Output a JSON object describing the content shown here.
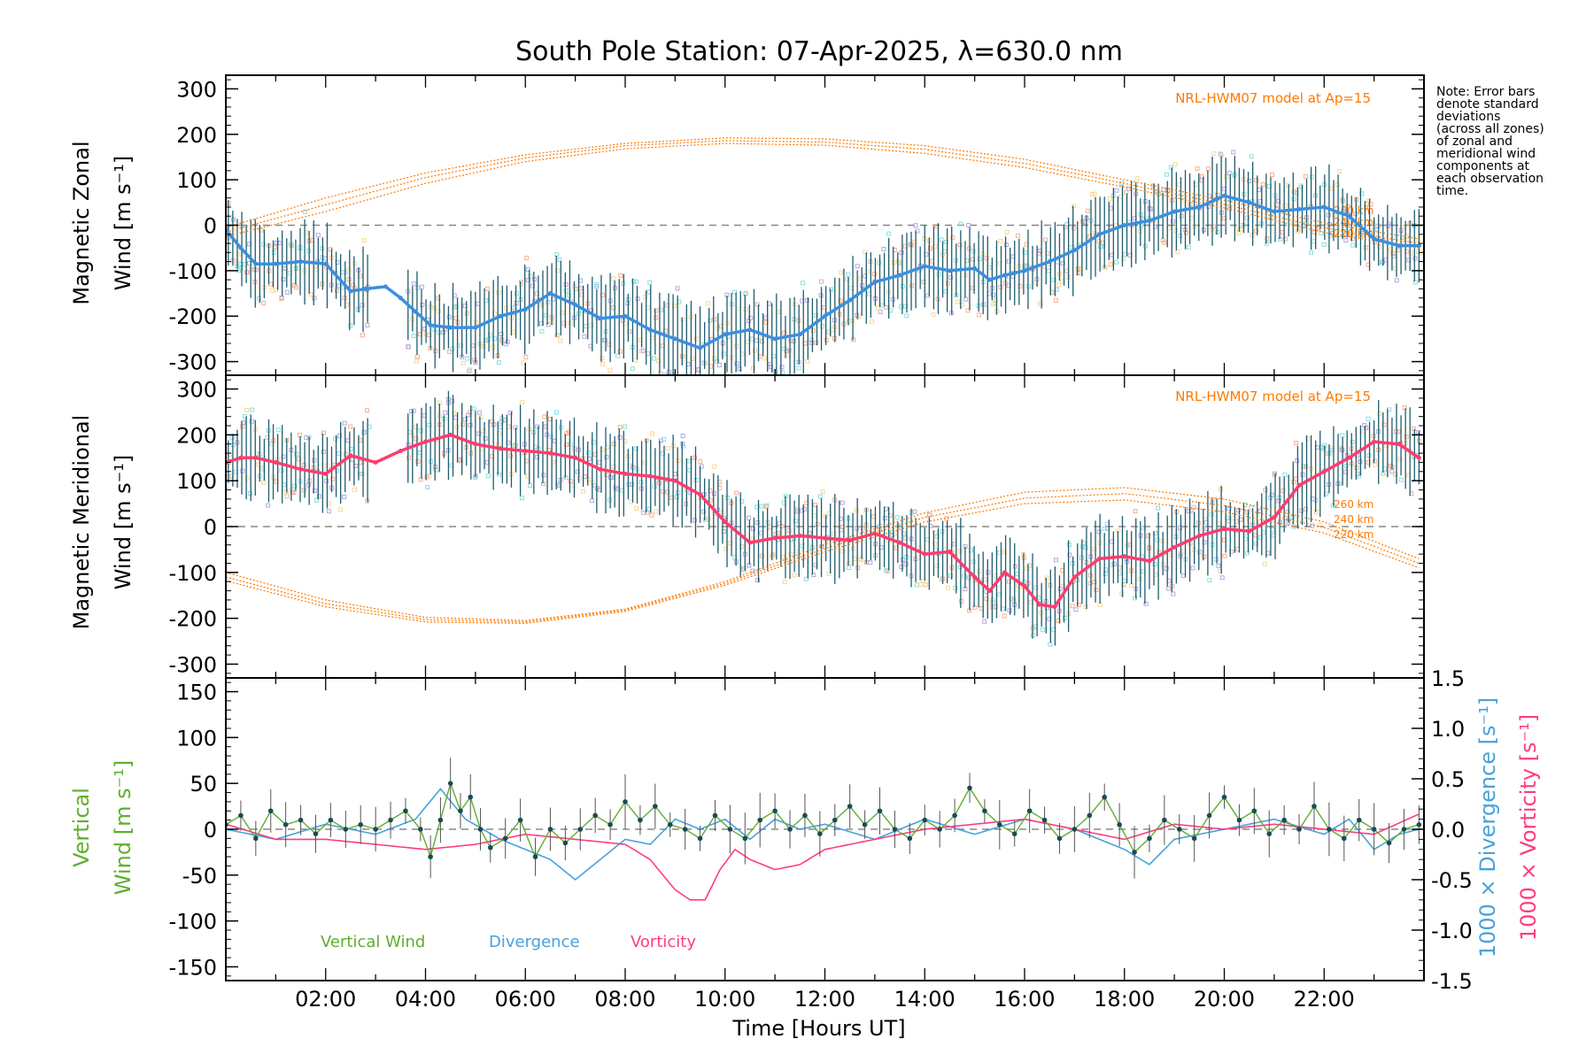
{
  "colors": {
    "zonal_mean": "#3a8fe0",
    "zonal_mean_dark": "#1a2ee0",
    "merid_mean": "#ff3c6e",
    "vertical": "#5fae2e",
    "divergence": "#47a2dc",
    "vorticity": "#ff3c7e",
    "model": "#ff7a00",
    "errbar": "#1f5c6e",
    "scatter_lav": "#b4a8e0",
    "scatter_peach": "#f8b08c",
    "scatter_cream": "#f8d898",
    "scatter_cyan": "#88e0e0"
  },
  "title": "South Pole Station: 07-Apr-2025, λ=630.0 nm",
  "note": {
    "lines": [
      "Note: Error bars",
      "denote standard",
      "deviations",
      "(across all zones)",
      "of zonal and",
      "meridional wind",
      "components at",
      "each observation",
      "time."
    ]
  },
  "x_axis": {
    "label": "Time [Hours UT]",
    "range": [
      0,
      24
    ],
    "ticks": [
      "02:00",
      "04:00",
      "06:00",
      "08:00",
      "10:00",
      "12:00",
      "14:00",
      "16:00",
      "18:00",
      "20:00",
      "22:00"
    ]
  },
  "chart_data": [
    {
      "type": "line",
      "panel": "zonal",
      "ylabel_top": "Magnetic Zonal",
      "ylabel_bottom": "Wind [m s⁻¹]",
      "ylim": [
        -330,
        330
      ],
      "yticks": [
        "300",
        "200",
        "100",
        "0",
        "-100",
        "-200",
        "-300"
      ],
      "model_label": "NRL-HWM07 model at Ap=15",
      "model_altitude_labels": [
        "260 km",
        "240 km",
        "220 km"
      ],
      "mean_series": {
        "name": "Magnetic Zonal Wind",
        "x": [
          0.0,
          0.3,
          0.6,
          1.0,
          1.5,
          2.0,
          2.5,
          2.8,
          3.2,
          3.5,
          3.8,
          4.1,
          4.5,
          5.0,
          5.5,
          6.0,
          6.5,
          7.0,
          7.5,
          8.0,
          8.5,
          9.0,
          9.5,
          10.0,
          10.5,
          11.0,
          11.5,
          12.0,
          12.5,
          13.0,
          13.5,
          14.0,
          14.5,
          15.0,
          15.3,
          15.6,
          16.0,
          16.5,
          17.0,
          17.5,
          18.0,
          18.5,
          19.0,
          19.5,
          20.0,
          20.5,
          21.0,
          21.5,
          22.0,
          22.5,
          23.0,
          23.5,
          23.9
        ],
        "values": [
          -10,
          -50,
          -85,
          -85,
          -80,
          -85,
          -145,
          -140,
          -135,
          -160,
          -190,
          -220,
          -225,
          -225,
          -200,
          -185,
          -150,
          -175,
          -205,
          -200,
          -230,
          -250,
          -270,
          -240,
          -230,
          -250,
          -240,
          -200,
          -165,
          -125,
          -110,
          -90,
          -100,
          -95,
          -120,
          -110,
          -100,
          -80,
          -55,
          -20,
          0,
          10,
          30,
          40,
          65,
          50,
          30,
          35,
          40,
          20,
          -30,
          -45,
          -45
        ]
      },
      "model_series": [
        {
          "name": "260 km",
          "x": [
            0,
            2,
            4,
            6,
            8,
            10,
            12,
            14,
            16,
            18,
            20,
            22,
            23.9
          ],
          "values": [
            -5,
            60,
            115,
            155,
            180,
            192,
            190,
            175,
            145,
            100,
            55,
            5,
            -30
          ]
        },
        {
          "name": "240 km",
          "x": [
            0,
            2,
            4,
            6,
            8,
            10,
            12,
            14,
            16,
            18,
            20,
            22,
            23.9
          ],
          "values": [
            -15,
            45,
            105,
            148,
            175,
            186,
            183,
            167,
            136,
            92,
            46,
            -6,
            -40
          ]
        },
        {
          "name": "220 km",
          "x": [
            0,
            2,
            4,
            6,
            8,
            10,
            12,
            14,
            16,
            18,
            20,
            22,
            23.9
          ],
          "values": [
            -25,
            30,
            92,
            140,
            168,
            180,
            176,
            158,
            127,
            84,
            38,
            -16,
            -50
          ]
        }
      ]
    },
    {
      "type": "line",
      "panel": "meridional",
      "ylabel_top": "Magnetic Meridional",
      "ylabel_bottom": "Wind [m s⁻¹]",
      "ylim": [
        -330,
        330
      ],
      "yticks": [
        "300",
        "200",
        "100",
        "0",
        "-100",
        "-200",
        "-300"
      ],
      "model_label": "NRL-HWM07 model at Ap=15",
      "model_altitude_labels": [
        "260 km",
        "240 km",
        "220 km"
      ],
      "mean_series": {
        "name": "Magnetic Meridional Wind",
        "x": [
          0.0,
          0.3,
          0.6,
          1.0,
          1.5,
          2.0,
          2.5,
          3.0,
          3.5,
          4.0,
          4.5,
          5.0,
          5.5,
          6.0,
          6.5,
          7.0,
          7.5,
          8.0,
          8.5,
          9.0,
          9.5,
          10.0,
          10.5,
          11.0,
          11.5,
          12.0,
          12.5,
          13.0,
          13.5,
          14.0,
          14.5,
          15.0,
          15.3,
          15.6,
          16.0,
          16.3,
          16.6,
          17.0,
          17.5,
          18.0,
          18.5,
          19.0,
          19.5,
          20.0,
          20.5,
          21.0,
          21.5,
          22.0,
          22.5,
          23.0,
          23.5,
          23.9
        ],
        "values": [
          140,
          150,
          150,
          140,
          125,
          115,
          155,
          140,
          165,
          185,
          200,
          180,
          170,
          165,
          160,
          150,
          125,
          115,
          110,
          100,
          70,
          10,
          -35,
          -25,
          -20,
          -25,
          -30,
          -15,
          -35,
          -60,
          -55,
          -110,
          -140,
          -100,
          -130,
          -170,
          -175,
          -110,
          -70,
          -65,
          -75,
          -45,
          -20,
          -5,
          -10,
          20,
          90,
          120,
          150,
          185,
          180,
          150
        ]
      },
      "model_series": [
        {
          "name": "260 km",
          "x": [
            0,
            2,
            4,
            6,
            8,
            10,
            12,
            14,
            16,
            18,
            20,
            22,
            23.9
          ],
          "values": [
            -100,
            -160,
            -198,
            -205,
            -180,
            -120,
            -40,
            30,
            75,
            85,
            60,
            10,
            -70
          ]
        },
        {
          "name": "240 km",
          "x": [
            0,
            2,
            4,
            6,
            8,
            10,
            12,
            14,
            16,
            18,
            20,
            22,
            23.9
          ],
          "values": [
            -110,
            -168,
            -203,
            -208,
            -182,
            -124,
            -48,
            20,
            62,
            72,
            46,
            -2,
            -80
          ]
        },
        {
          "name": "220 km",
          "x": [
            0,
            2,
            4,
            6,
            8,
            10,
            12,
            14,
            16,
            18,
            20,
            22,
            23.9
          ],
          "values": [
            -118,
            -175,
            -208,
            -211,
            -185,
            -128,
            -55,
            10,
            50,
            58,
            32,
            -14,
            -90
          ]
        }
      ]
    },
    {
      "type": "line",
      "panel": "vertical",
      "ylabel_top": "Vertical",
      "ylabel_bottom": "Wind [m s⁻¹]",
      "ylim": [
        -165,
        165
      ],
      "yticks": [
        "150",
        "100",
        "50",
        "0",
        "-50",
        "-100",
        "-150"
      ],
      "right_ylim": [
        -1.5,
        1.5
      ],
      "right_yticks": [
        "1.5",
        "1.0",
        "0.5",
        "0.0",
        "-0.5",
        "-1.0",
        "-1.5"
      ],
      "right_label_div": "1000 × Divergence [s⁻¹]",
      "right_label_vort": "1000 × Vorticity [s⁻¹]",
      "legend": [
        "Vertical Wind",
        "Divergence",
        "Vorticity"
      ],
      "series": [
        {
          "name": "Vertical Wind",
          "x": [
            0.0,
            0.3,
            0.6,
            0.9,
            1.2,
            1.5,
            1.8,
            2.1,
            2.4,
            2.7,
            3.0,
            3.3,
            3.6,
            3.9,
            4.1,
            4.3,
            4.5,
            4.7,
            4.9,
            5.1,
            5.3,
            5.6,
            5.9,
            6.2,
            6.5,
            6.8,
            7.1,
            7.4,
            7.7,
            8.0,
            8.3,
            8.6,
            8.9,
            9.2,
            9.5,
            9.8,
            10.1,
            10.4,
            10.7,
            11.0,
            11.3,
            11.6,
            11.9,
            12.2,
            12.5,
            12.8,
            13.1,
            13.4,
            13.7,
            14.0,
            14.3,
            14.6,
            14.9,
            15.2,
            15.5,
            15.8,
            16.1,
            16.4,
            16.7,
            17.0,
            17.3,
            17.6,
            17.9,
            18.2,
            18.5,
            18.8,
            19.1,
            19.4,
            19.7,
            20.0,
            20.3,
            20.6,
            20.9,
            21.2,
            21.5,
            21.8,
            22.1,
            22.4,
            22.7,
            23.0,
            23.3,
            23.6,
            23.9
          ],
          "values": [
            5,
            15,
            -10,
            20,
            5,
            10,
            -5,
            10,
            0,
            5,
            0,
            10,
            20,
            0,
            -30,
            10,
            50,
            20,
            35,
            0,
            -20,
            -10,
            10,
            -30,
            0,
            -15,
            0,
            15,
            5,
            30,
            10,
            25,
            5,
            0,
            -10,
            15,
            0,
            -10,
            10,
            20,
            0,
            15,
            -5,
            10,
            25,
            5,
            20,
            0,
            -10,
            10,
            0,
            15,
            45,
            20,
            5,
            -5,
            20,
            10,
            -10,
            0,
            15,
            35,
            5,
            -25,
            -10,
            10,
            0,
            -10,
            15,
            35,
            10,
            20,
            -5,
            10,
            0,
            25,
            0,
            -10,
            10,
            0,
            -15,
            0,
            5
          ]
        },
        {
          "name": "Divergence",
          "axis": "right",
          "x": [
            0.0,
            1.0,
            2.0,
            3.0,
            3.8,
            4.3,
            4.8,
            5.5,
            6.5,
            7.0,
            7.5,
            8.0,
            8.5,
            9.0,
            9.5,
            10.0,
            10.5,
            11.0,
            11.5,
            12.0,
            13.0,
            14.0,
            15.0,
            16.0,
            17.0,
            18.0,
            18.5,
            19.0,
            20.0,
            21.0,
            22.0,
            22.5,
            23.0,
            23.5,
            23.9
          ],
          "values": [
            0.0,
            -0.1,
            0.05,
            -0.05,
            0.1,
            0.4,
            0.1,
            -0.1,
            -0.3,
            -0.5,
            -0.3,
            -0.1,
            -0.15,
            0.1,
            0.0,
            0.1,
            -0.1,
            0.1,
            0.0,
            0.05,
            -0.1,
            0.1,
            -0.05,
            0.1,
            0.0,
            -0.2,
            -0.35,
            -0.1,
            0.0,
            0.1,
            -0.05,
            0.1,
            -0.2,
            -0.05,
            0.0
          ]
        },
        {
          "name": "Vorticity",
          "axis": "right",
          "x": [
            0.0,
            1.0,
            2.0,
            3.0,
            4.0,
            5.0,
            6.0,
            7.0,
            8.0,
            8.5,
            9.0,
            9.3,
            9.6,
            9.9,
            10.2,
            10.5,
            11.0,
            11.5,
            12.0,
            13.0,
            14.0,
            15.0,
            16.0,
            17.0,
            18.0,
            19.0,
            20.0,
            21.0,
            22.0,
            23.0,
            23.9
          ],
          "values": [
            0.05,
            -0.1,
            -0.1,
            -0.15,
            -0.2,
            -0.15,
            -0.05,
            -0.1,
            -0.15,
            -0.3,
            -0.6,
            -0.7,
            -0.7,
            -0.4,
            -0.2,
            -0.3,
            -0.4,
            -0.35,
            -0.2,
            -0.1,
            0.0,
            0.05,
            0.1,
            0.0,
            -0.1,
            0.05,
            0.0,
            0.05,
            0.0,
            -0.05,
            0.15
          ]
        }
      ]
    }
  ]
}
